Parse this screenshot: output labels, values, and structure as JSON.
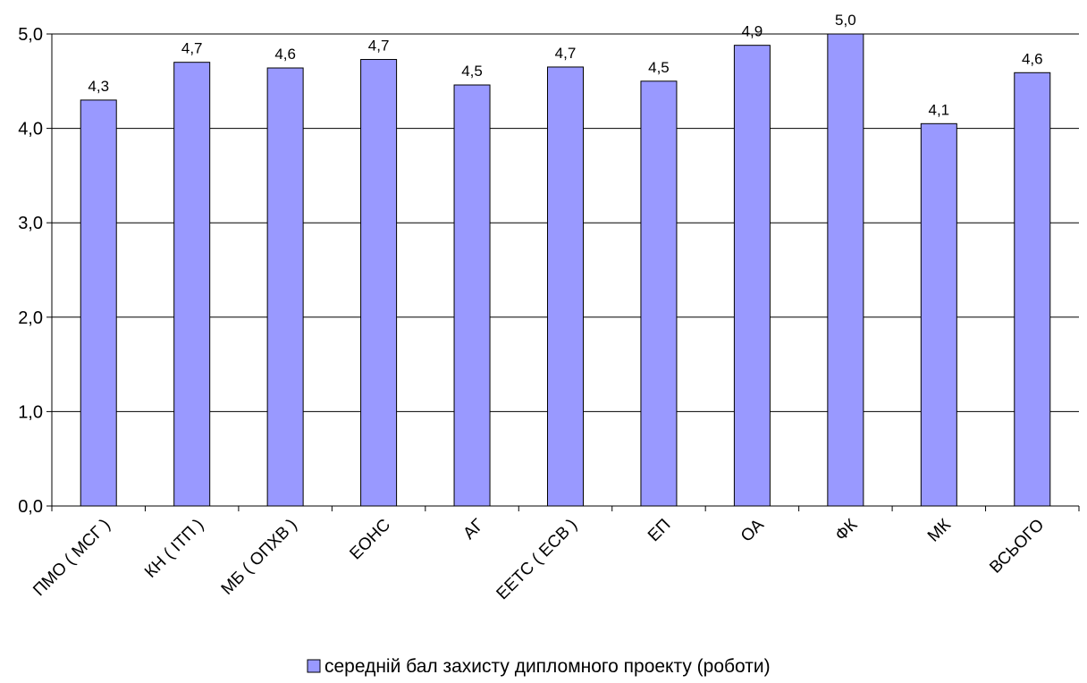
{
  "chart_data": {
    "type": "bar",
    "categories": [
      "ПМО ( МСГ )",
      "КН ( ІТП )",
      "МБ ( ОПХВ )",
      "ЕОНС",
      "АГ",
      "ЕЕТС ( ЕСВ )",
      "ЕП",
      "ОА",
      "ФК",
      "МК",
      "ВСЬОГО"
    ],
    "series": [
      {
        "name": "середній бал захисту дипломного проекту (роботи)",
        "values": [
          4.3,
          4.7,
          4.64,
          4.73,
          4.46,
          4.65,
          4.5,
          4.88,
          5.0,
          4.05,
          4.59
        ],
        "labels": [
          "4,3",
          "4,7",
          "4,6",
          "4,7",
          "4,5",
          "4,7",
          "4,5",
          "4,9",
          "5,0",
          "4,1",
          "4,6"
        ]
      }
    ],
    "ylim": [
      0,
      5
    ],
    "yticks": [
      {
        "value": 0,
        "label": "0,0"
      },
      {
        "value": 1,
        "label": "1,0"
      },
      {
        "value": 2,
        "label": "2,0"
      },
      {
        "value": 3,
        "label": "3,0"
      },
      {
        "value": 4,
        "label": "4,0"
      },
      {
        "value": 5,
        "label": "5,0"
      }
    ],
    "grid": true,
    "legend_position": "bottom",
    "colors": {
      "bar_fill": "#9999ff",
      "bar_stroke": "#000000",
      "grid": "#000000",
      "axis": "#000000"
    }
  }
}
